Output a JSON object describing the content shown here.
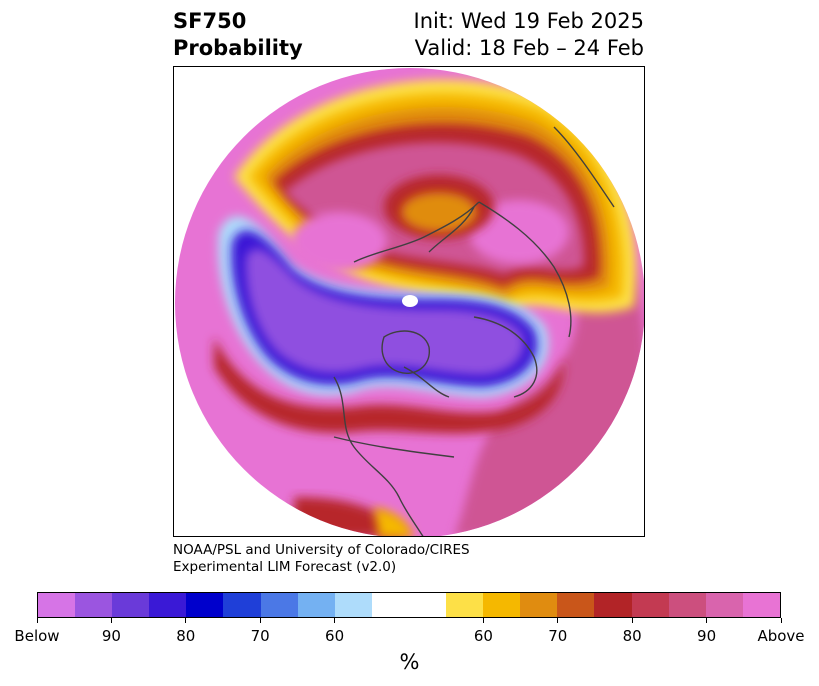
{
  "header": {
    "title_line1": "SF750",
    "title_line2": "Probability",
    "init": "Init: Wed 19 Feb 2025",
    "valid": "Valid: 18 Feb – 24 Feb"
  },
  "credit": {
    "line1": "NOAA/PSL and University of Colorado/CIRES",
    "line2": "Experimental LIM Forecast (v2.0)"
  },
  "colorbar": {
    "colors": [
      "#d674e6",
      "#9b55e0",
      "#6a3ad9",
      "#3a19d6",
      "#0000cc",
      "#1f3fd8",
      "#4b78e6",
      "#74b1f2",
      "#aedcfb",
      "#ffffff",
      "#ffffff",
      "#fde047",
      "#f5b800",
      "#e08c10",
      "#c9561a",
      "#b22427",
      "#c33a52",
      "#cc4f7e",
      "#d964ad",
      "#e873d4"
    ],
    "tick_labels": [
      "Below",
      "90",
      "80",
      "70",
      "60",
      "60",
      "70",
      "80",
      "90",
      "Above"
    ],
    "unit": "%"
  },
  "map": {
    "colors": {
      "pink": "#e773d4",
      "magenta": "#cf5494",
      "darkred": "#b7262c",
      "orange": "#e08c10",
      "gold": "#f5b800",
      "yellow": "#fde047",
      "lightblue": "#aedcfb",
      "blue": "#3a19d6",
      "violet": "#8f4fe0",
      "coast": "#404040"
    }
  }
}
